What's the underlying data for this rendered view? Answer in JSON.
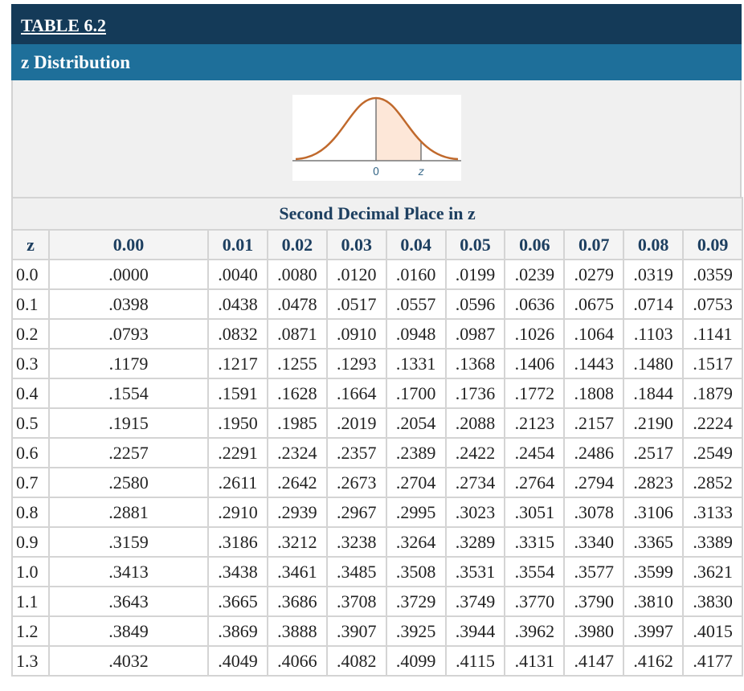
{
  "header": {
    "title": "TABLE 6.2",
    "subtitle": "z Distribution"
  },
  "figure": {
    "labels": [
      "0",
      "z"
    ]
  },
  "table": {
    "caption": "Second Decimal Place in z",
    "columns": [
      "z",
      "0.00",
      "0.01",
      "0.02",
      "0.03",
      "0.04",
      "0.05",
      "0.06",
      "0.07",
      "0.08",
      "0.09"
    ],
    "rows": [
      [
        "0.0",
        ".0000",
        ".0040",
        ".0080",
        ".0120",
        ".0160",
        ".0199",
        ".0239",
        ".0279",
        ".0319",
        ".0359"
      ],
      [
        "0.1",
        ".0398",
        ".0438",
        ".0478",
        ".0517",
        ".0557",
        ".0596",
        ".0636",
        ".0675",
        ".0714",
        ".0753"
      ],
      [
        "0.2",
        ".0793",
        ".0832",
        ".0871",
        ".0910",
        ".0948",
        ".0987",
        ".1026",
        ".1064",
        ".1103",
        ".1141"
      ],
      [
        "0.3",
        ".1179",
        ".1217",
        ".1255",
        ".1293",
        ".1331",
        ".1368",
        ".1406",
        ".1443",
        ".1480",
        ".1517"
      ],
      [
        "0.4",
        ".1554",
        ".1591",
        ".1628",
        ".1664",
        ".1700",
        ".1736",
        ".1772",
        ".1808",
        ".1844",
        ".1879"
      ],
      [
        "0.5",
        ".1915",
        ".1950",
        ".1985",
        ".2019",
        ".2054",
        ".2088",
        ".2123",
        ".2157",
        ".2190",
        ".2224"
      ],
      [
        "0.6",
        ".2257",
        ".2291",
        ".2324",
        ".2357",
        ".2389",
        ".2422",
        ".2454",
        ".2486",
        ".2517",
        ".2549"
      ],
      [
        "0.7",
        ".2580",
        ".2611",
        ".2642",
        ".2673",
        ".2704",
        ".2734",
        ".2764",
        ".2794",
        ".2823",
        ".2852"
      ],
      [
        "0.8",
        ".2881",
        ".2910",
        ".2939",
        ".2967",
        ".2995",
        ".3023",
        ".3051",
        ".3078",
        ".3106",
        ".3133"
      ],
      [
        "0.9",
        ".3159",
        ".3186",
        ".3212",
        ".3238",
        ".3264",
        ".3289",
        ".3315",
        ".3340",
        ".3365",
        ".3389"
      ],
      [
        "1.0",
        ".3413",
        ".3438",
        ".3461",
        ".3485",
        ".3508",
        ".3531",
        ".3554",
        ".3577",
        ".3599",
        ".3621"
      ],
      [
        "1.1",
        ".3643",
        ".3665",
        ".3686",
        ".3708",
        ".3729",
        ".3749",
        ".3770",
        ".3790",
        ".3810",
        ".3830"
      ],
      [
        "1.2",
        ".3849",
        ".3869",
        ".3888",
        ".3907",
        ".3925",
        ".3944",
        ".3962",
        ".3980",
        ".3997",
        ".4015"
      ],
      [
        "1.3",
        ".4032",
        ".4049",
        ".4066",
        ".4082",
        ".4099",
        ".4115",
        ".4131",
        ".4147",
        ".4162",
        ".4177"
      ]
    ]
  }
}
